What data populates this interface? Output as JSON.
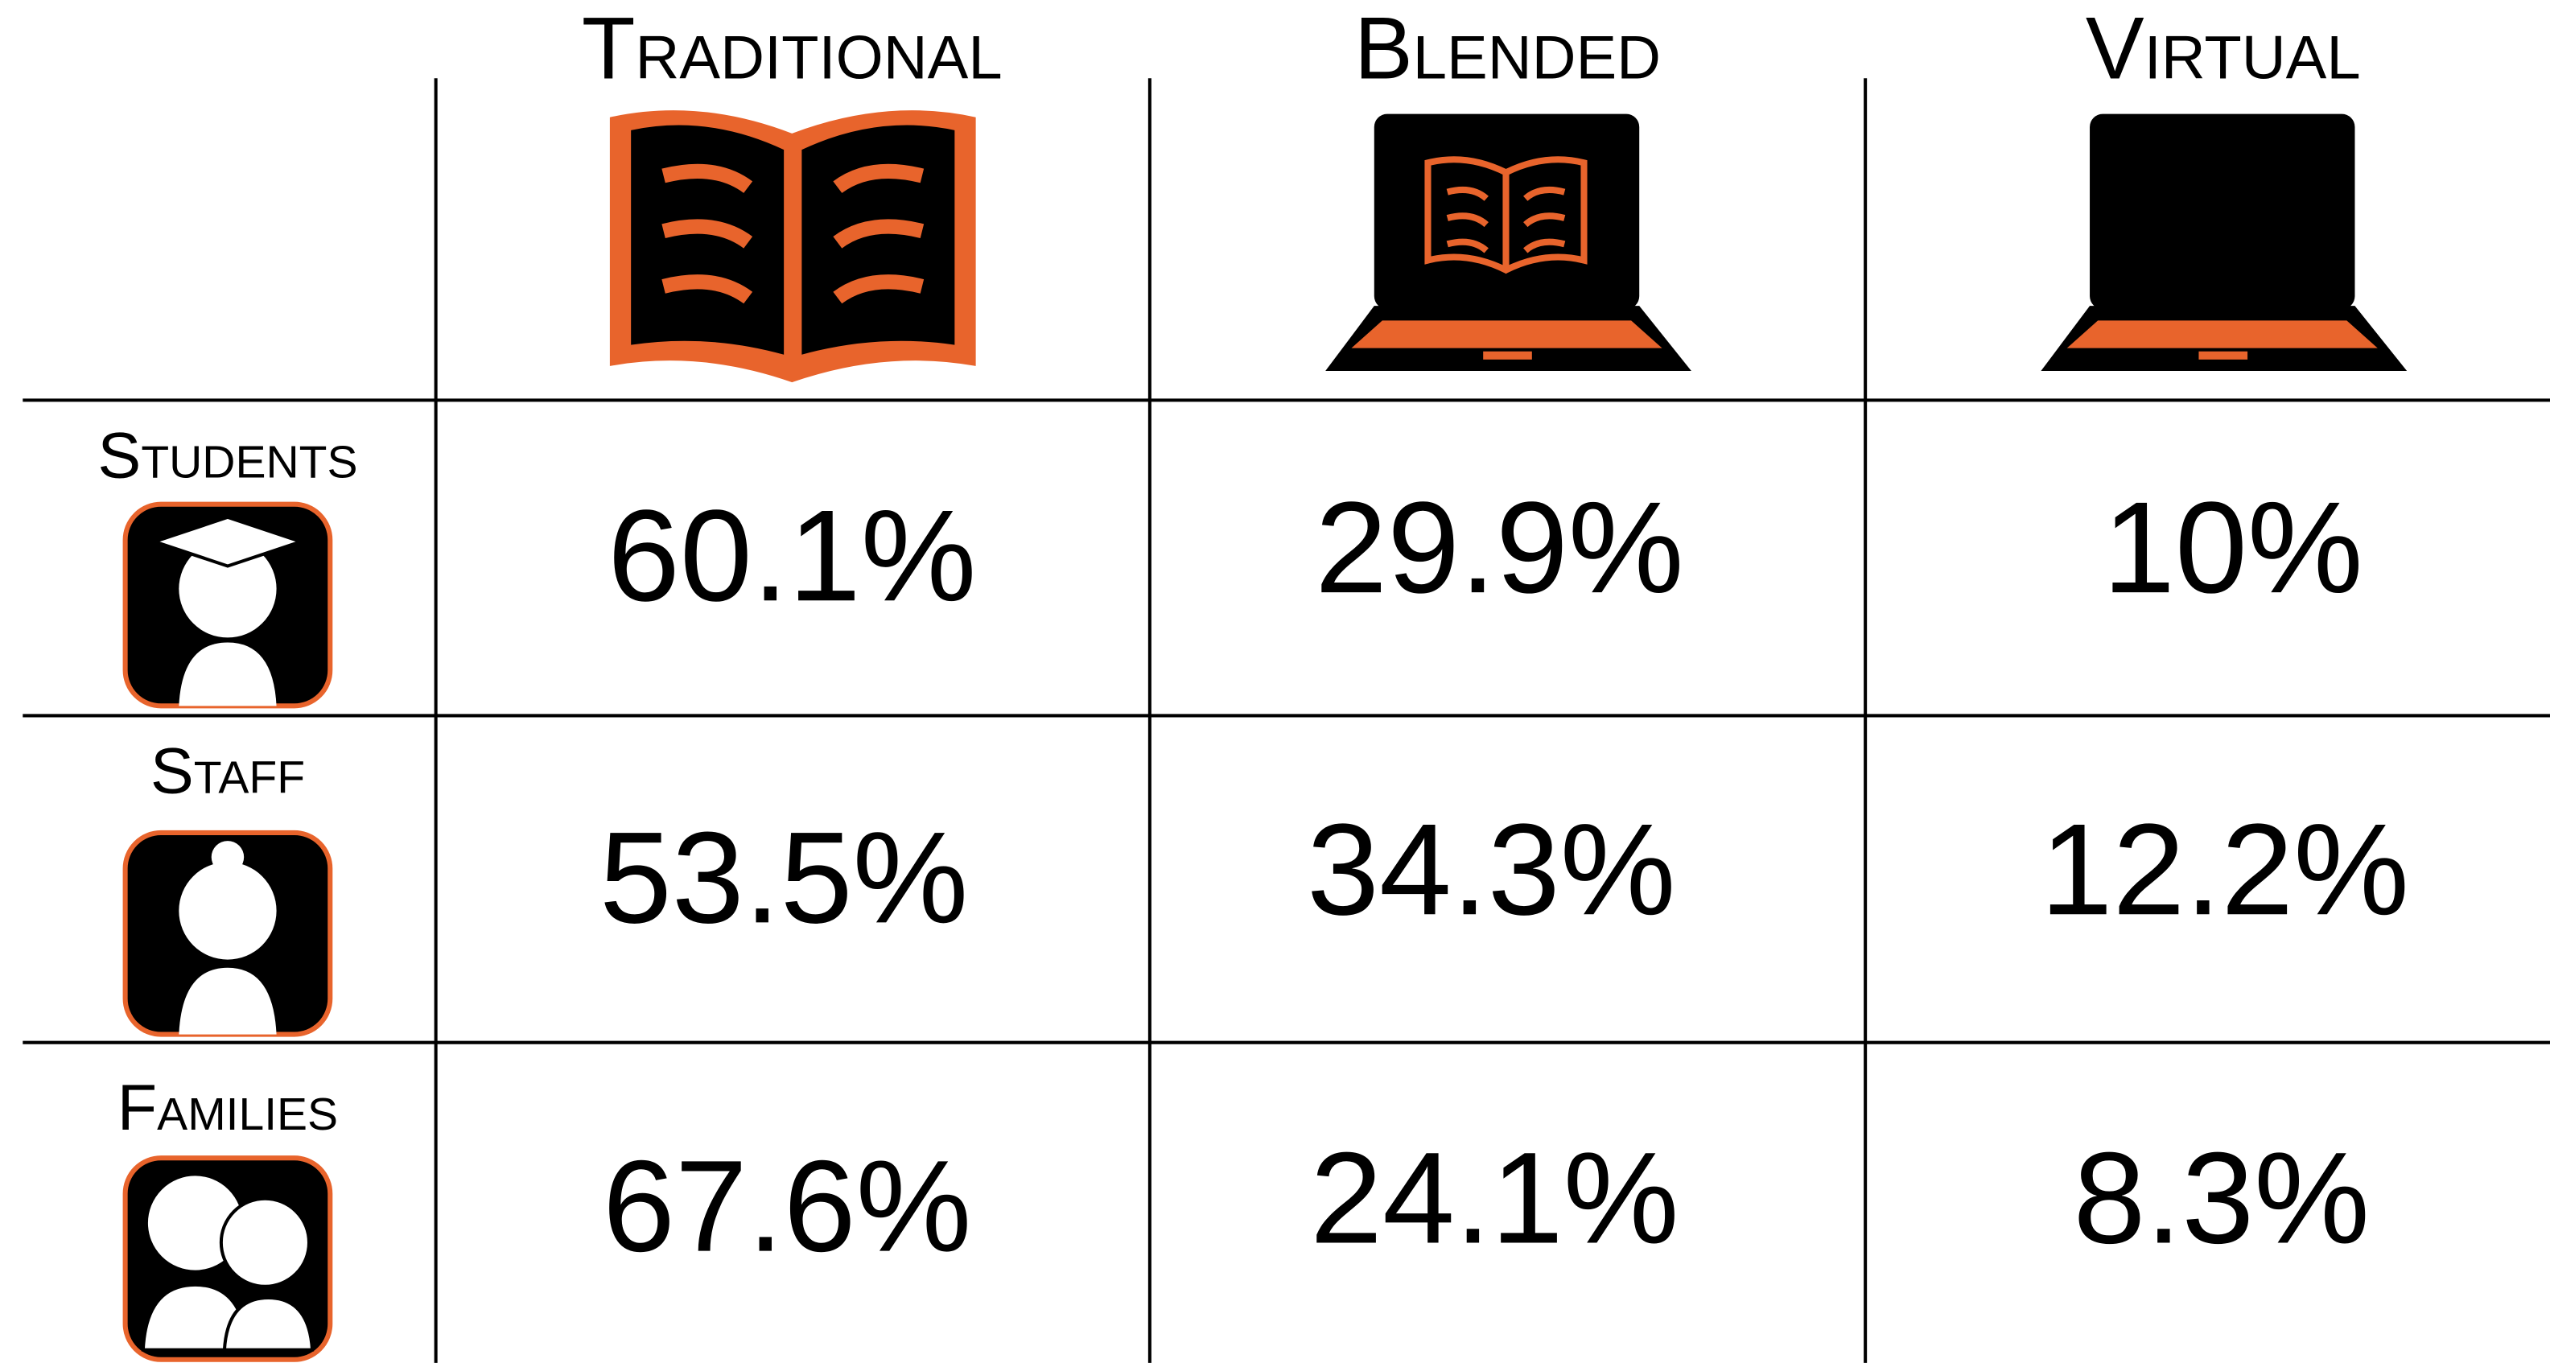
{
  "table": {
    "columns": [
      "Traditional",
      "Blended",
      "Virtual"
    ],
    "rows": [
      {
        "label": "Students",
        "values": [
          "60.1%",
          "29.9%",
          "10%"
        ]
      },
      {
        "label": "Staff",
        "values": [
          "53.5%",
          "34.3%",
          "12.2%"
        ]
      },
      {
        "label": "Families",
        "values": [
          "67.6%",
          "24.1%",
          "8.3%"
        ]
      }
    ]
  }
}
